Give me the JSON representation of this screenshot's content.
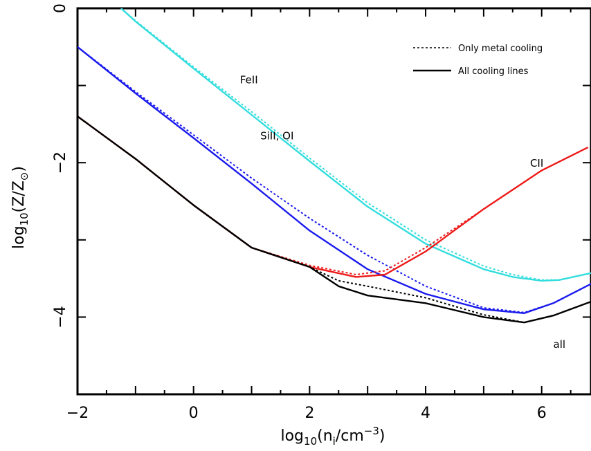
{
  "chart_data": {
    "type": "line",
    "xlabel": "log10(ni/cm−3)",
    "ylabel": "log10(Z/Z⊙)",
    "xlim": [
      -2,
      6.85
    ],
    "ylim": [
      -5,
      0
    ],
    "x_ticks": [
      -2,
      0,
      2,
      4,
      6
    ],
    "y_ticks": [
      0,
      -2,
      -4
    ],
    "legend": {
      "placement": "top-right",
      "entries": [
        {
          "label": "Only metal cooling",
          "style": "dotted"
        },
        {
          "label": "All cooling lines",
          "style": "solid"
        }
      ]
    },
    "series": [
      {
        "label": "FeII",
        "color": "#33dddd",
        "all_cooling_lines": [
          [
            -1.25,
            0
          ],
          [
            -1,
            -0.17
          ],
          [
            0,
            -0.78
          ],
          [
            1,
            -1.38
          ],
          [
            2,
            -1.98
          ],
          [
            3,
            -2.57
          ],
          [
            4,
            -3.05
          ],
          [
            5,
            -3.38
          ],
          [
            5.5,
            -3.48
          ],
          [
            6,
            -3.53
          ],
          [
            6.3,
            -3.52
          ],
          [
            6.85,
            -3.43
          ]
        ],
        "only_metal_cooling": [
          [
            -1.25,
            0
          ],
          [
            -1,
            -0.16
          ],
          [
            0,
            -0.76
          ],
          [
            1,
            -1.34
          ],
          [
            2,
            -1.94
          ],
          [
            3,
            -2.52
          ],
          [
            4,
            -3.0
          ],
          [
            5,
            -3.34
          ],
          [
            5.5,
            -3.45
          ],
          [
            6,
            -3.52
          ],
          [
            6.3,
            -3.52
          ],
          [
            6.85,
            -3.43
          ]
        ]
      },
      {
        "label": "SiII, OI",
        "color": "#1a1aee",
        "all_cooling_lines": [
          [
            -2,
            -0.5
          ],
          [
            -1,
            -1.1
          ],
          [
            0,
            -1.68
          ],
          [
            1,
            -2.27
          ],
          [
            2,
            -2.88
          ],
          [
            3,
            -3.38
          ],
          [
            4,
            -3.7
          ],
          [
            5,
            -3.9
          ],
          [
            5.7,
            -3.95
          ],
          [
            6.2,
            -3.82
          ],
          [
            6.85,
            -3.57
          ]
        ],
        "only_metal_cooling": [
          [
            -2,
            -0.5
          ],
          [
            -1,
            -1.08
          ],
          [
            0,
            -1.64
          ],
          [
            1,
            -2.2
          ],
          [
            2,
            -2.72
          ],
          [
            3,
            -3.2
          ],
          [
            4,
            -3.6
          ],
          [
            5,
            -3.88
          ],
          [
            5.7,
            -3.94
          ],
          [
            6.2,
            -3.82
          ],
          [
            6.85,
            -3.57
          ]
        ]
      },
      {
        "label": "CII",
        "color": "#ee1a1a",
        "all_cooling_lines": [
          [
            -2,
            -1.4
          ],
          [
            -1,
            -1.95
          ],
          [
            0,
            -2.55
          ],
          [
            1,
            -3.1
          ],
          [
            2,
            -3.35
          ],
          [
            2.8,
            -3.48
          ],
          [
            3.3,
            -3.45
          ],
          [
            4,
            -3.15
          ],
          [
            5,
            -2.6
          ],
          [
            6,
            -2.1
          ],
          [
            6.8,
            -1.8
          ]
        ],
        "only_metal_cooling": [
          [
            -2,
            -1.4
          ],
          [
            -1,
            -1.95
          ],
          [
            0,
            -2.55
          ],
          [
            1,
            -3.1
          ],
          [
            2,
            -3.33
          ],
          [
            2.8,
            -3.45
          ],
          [
            3.3,
            -3.4
          ],
          [
            4,
            -3.1
          ],
          [
            5,
            -2.6
          ],
          [
            6,
            -2.1
          ],
          [
            6.8,
            -1.8
          ]
        ]
      },
      {
        "label": "all",
        "color": "#000000",
        "all_cooling_lines": [
          [
            -2,
            -1.4
          ],
          [
            -1,
            -1.95
          ],
          [
            0,
            -2.55
          ],
          [
            1,
            -3.1
          ],
          [
            2,
            -3.35
          ],
          [
            2.5,
            -3.6
          ],
          [
            3,
            -3.72
          ],
          [
            4,
            -3.82
          ],
          [
            5,
            -4.0
          ],
          [
            5.7,
            -4.07
          ],
          [
            6.2,
            -3.98
          ],
          [
            6.85,
            -3.8
          ]
        ],
        "only_metal_cooling": [
          [
            -2,
            -1.4
          ],
          [
            -1,
            -1.95
          ],
          [
            0,
            -2.55
          ],
          [
            1,
            -3.1
          ],
          [
            2,
            -3.35
          ],
          [
            2.5,
            -3.53
          ],
          [
            3,
            -3.6
          ],
          [
            4,
            -3.75
          ],
          [
            5,
            -3.97
          ],
          [
            5.7,
            -4.07
          ],
          [
            6.2,
            -3.98
          ],
          [
            6.85,
            -3.8
          ]
        ]
      }
    ],
    "annotations": [
      {
        "text": "FeII",
        "x": 0.8,
        "y": -0.97
      },
      {
        "text": "SiII,  OI",
        "x": 1.15,
        "y": -1.7
      },
      {
        "text": "CII",
        "x": 5.8,
        "y": -2.05
      },
      {
        "text": "all",
        "x": 6.2,
        "y": -4.4
      }
    ]
  }
}
